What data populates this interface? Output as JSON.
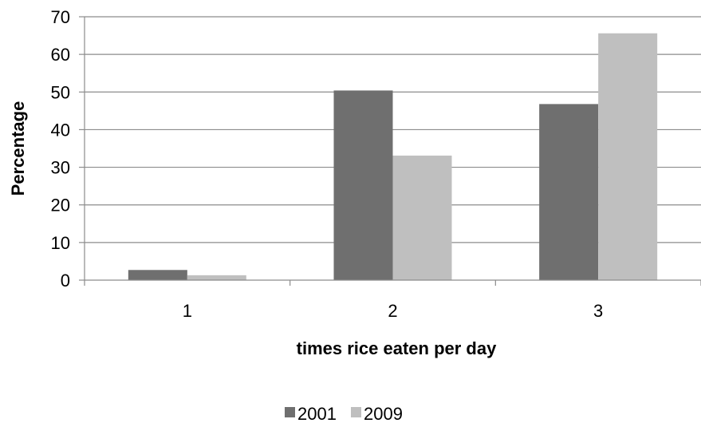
{
  "chart_data": {
    "type": "bar",
    "title": "",
    "xlabel": "times rice eaten per day",
    "ylabel": "Percentage",
    "categories": [
      "1",
      "2",
      "3"
    ],
    "series": [
      {
        "name": "2001",
        "values": [
          2.7,
          50.4,
          46.8
        ],
        "color": "#6f6f6f"
      },
      {
        "name": "2009",
        "values": [
          1.3,
          33.1,
          65.6
        ],
        "color": "#bfbfbf"
      }
    ],
    "ylim": [
      0,
      70
    ],
    "yticks": [
      0,
      10,
      20,
      30,
      40,
      50,
      60,
      70
    ],
    "grid": true,
    "legend": "bottom"
  }
}
